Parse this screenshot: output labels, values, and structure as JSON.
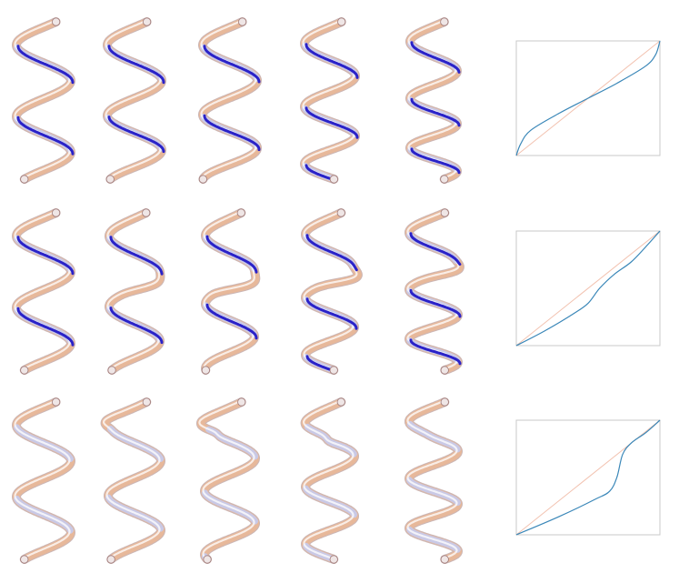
{
  "figure": {
    "rows": [
      {
        "id": "row-1",
        "helices": [
          {
            "turns": 2.2,
            "amplitude": 30,
            "blue_visible": true,
            "kink": 0,
            "kink_pos": 0.35,
            "compress": 0.0
          },
          {
            "turns": 2.25,
            "amplitude": 30,
            "blue_visible": true,
            "kink": 0,
            "kink_pos": 0.35,
            "compress": 0.05
          },
          {
            "turns": 2.3,
            "amplitude": 30,
            "blue_visible": true,
            "kink": 0,
            "kink_pos": 0.35,
            "compress": 0.1
          },
          {
            "turns": 2.6,
            "amplitude": 28,
            "blue_visible": true,
            "kink": 0,
            "kink_pos": 0.35,
            "compress": 0.2
          },
          {
            "turns": 3.0,
            "amplitude": 26,
            "blue_visible": true,
            "kink": 0,
            "kink_pos": 0.35,
            "compress": 0.3
          }
        ],
        "plot": {
          "type": "line",
          "x": [
            0,
            0.03,
            0.1,
            0.3,
            0.5,
            0.7,
            0.9,
            0.97,
            1
          ],
          "y": [
            0,
            0.1,
            0.22,
            0.37,
            0.5,
            0.63,
            0.78,
            0.88,
            1
          ]
        }
      },
      {
        "id": "row-2",
        "helices": [
          {
            "turns": 2.2,
            "amplitude": 30,
            "blue_visible": true,
            "kink": 0,
            "kink_pos": 0.45,
            "compress": 0.0
          },
          {
            "turns": 2.25,
            "amplitude": 28,
            "blue_visible": true,
            "kink": 0.35,
            "kink_pos": 0.45,
            "compress": 0.05
          },
          {
            "turns": 2.35,
            "amplitude": 27,
            "blue_visible": true,
            "kink": 0.55,
            "kink_pos": 0.45,
            "compress": 0.1
          },
          {
            "turns": 2.6,
            "amplitude": 27,
            "blue_visible": true,
            "kink": 0.5,
            "kink_pos": 0.4,
            "compress": 0.2
          },
          {
            "turns": 3.0,
            "amplitude": 27,
            "blue_visible": true,
            "kink": 0.3,
            "kink_pos": 0.35,
            "compress": 0.3
          }
        ],
        "plot": {
          "type": "line",
          "x": [
            0,
            0.2,
            0.4,
            0.5,
            0.58,
            0.68,
            0.8,
            0.9,
            1
          ],
          "y": [
            0,
            0.13,
            0.28,
            0.37,
            0.5,
            0.62,
            0.73,
            0.86,
            1
          ]
        }
      },
      {
        "id": "row-3",
        "helices": [
          {
            "turns": 2.2,
            "amplitude": 30,
            "blue_visible": false,
            "kink": 0,
            "kink_pos": 0.15,
            "compress": 0.0
          },
          {
            "turns": 2.25,
            "amplitude": 29,
            "blue_visible": false,
            "kink": 0.4,
            "kink_pos": 0.12,
            "compress": 0.05
          },
          {
            "turns": 2.4,
            "amplitude": 28,
            "blue_visible": false,
            "kink": 0.6,
            "kink_pos": 0.15,
            "compress": 0.1
          },
          {
            "turns": 2.6,
            "amplitude": 27,
            "blue_visible": false,
            "kink": 0.5,
            "kink_pos": 0.2,
            "compress": 0.2
          },
          {
            "turns": 3.0,
            "amplitude": 27,
            "blue_visible": false,
            "kink": 0.2,
            "kink_pos": 0.2,
            "compress": 0.3
          }
        ],
        "plot": {
          "type": "line",
          "x": [
            0,
            0.3,
            0.55,
            0.65,
            0.7,
            0.74,
            0.8,
            0.9,
            1
          ],
          "y": [
            0,
            0.16,
            0.31,
            0.38,
            0.5,
            0.7,
            0.8,
            0.89,
            1
          ]
        }
      }
    ]
  },
  "colors": {
    "tube_warm": "#e7b89a",
    "tube_cool": "#c9c9e6",
    "tube_highlight": "#ffffff",
    "tube_shadow": "#a07a78",
    "blue_strand": "#2a22c8",
    "plot_curve": "#3a87b8",
    "plot_diagonal": "#f2c2b0",
    "plot_frame": "#c8c8c8"
  }
}
